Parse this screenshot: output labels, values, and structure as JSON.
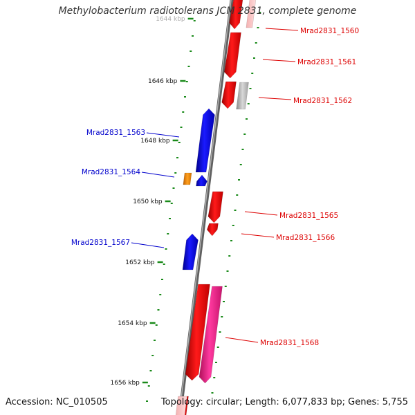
{
  "title": "Methylobacterium radiotolerans JCM 2831, complete genome",
  "footer": {
    "accession": "Accession: NC_010505",
    "topology": "Topology: circular; Length: 6,077,833 bp; Genes: 5,755"
  },
  "colors": {
    "forward_gene": "#ff0000",
    "reverse_gene": "#0000ff",
    "pseudo_gene": "#b0b0b0",
    "rna_gene": "#ff8800",
    "highlight_gene": "#ff2d95",
    "forward_label": "#dd0000",
    "reverse_label": "#0000cc",
    "backbone": "#808080",
    "tick": "#1a8a1a"
  },
  "scale": {
    "unit": "kbp",
    "labels": [
      "1644 kbp",
      "1646 kbp",
      "1648 kbp",
      "1650 kbp",
      "1652 kbp",
      "1654 kbp",
      "1656 kbp"
    ]
  },
  "genes": [
    {
      "id": "Mrad2831_1560",
      "strand": "forward",
      "label": "Mrad2831_1560",
      "type": "forward_gene"
    },
    {
      "id": "Mrad2831_1561",
      "strand": "forward",
      "label": "Mrad2831_1561",
      "type": "forward_gene"
    },
    {
      "id": "Mrad2831_1562",
      "strand": "forward",
      "label": "Mrad2831_1562",
      "type": "forward_gene"
    },
    {
      "id": "Mrad2831_1563",
      "strand": "reverse",
      "label": "Mrad2831_1563",
      "type": "reverse_gene"
    },
    {
      "id": "Mrad2831_1564",
      "strand": "reverse",
      "label": "Mrad2831_1564",
      "type": "reverse_gene"
    },
    {
      "id": "Mrad2831_1565",
      "strand": "forward",
      "label": "Mrad2831_1565",
      "type": "forward_gene"
    },
    {
      "id": "Mrad2831_1566",
      "strand": "forward",
      "label": "Mrad2831_1566",
      "type": "forward_gene"
    },
    {
      "id": "Mrad2831_1567",
      "strand": "reverse",
      "label": "Mrad2831_1567",
      "type": "reverse_gene"
    },
    {
      "id": "Mrad2831_1568",
      "strand": "forward",
      "label": "Mrad2831_1568",
      "type": "forward_gene"
    }
  ]
}
